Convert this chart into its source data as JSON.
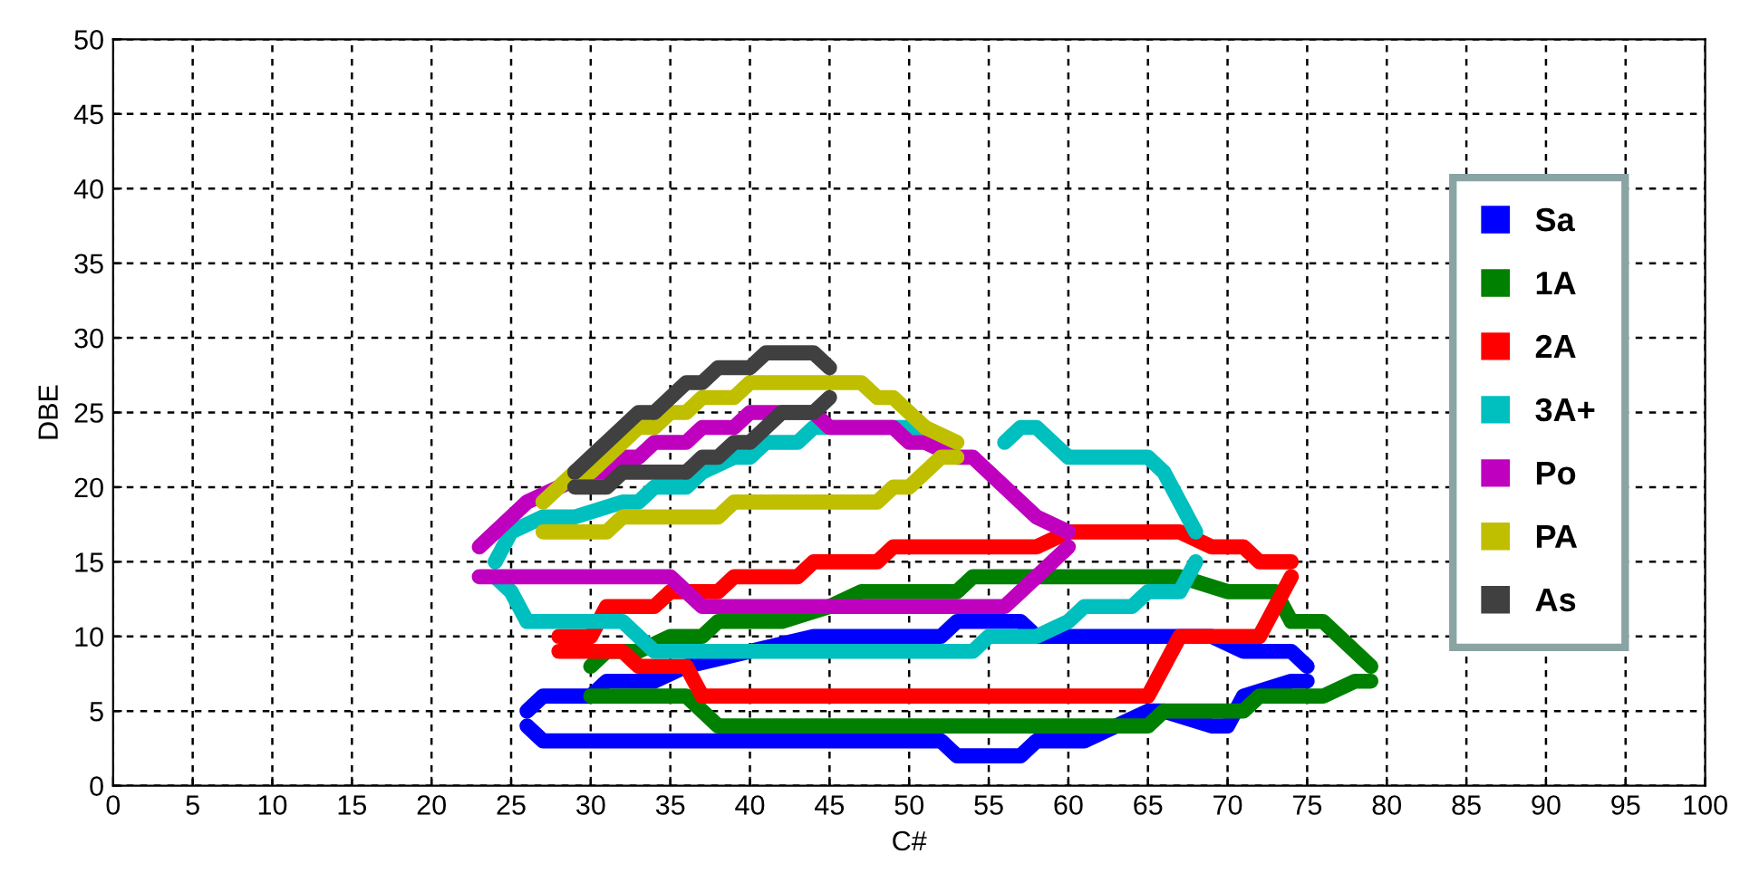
{
  "chart_data": {
    "type": "line",
    "xlabel": "C#",
    "ylabel": "DBE",
    "xlim": [
      0,
      100
    ],
    "xticks": [
      0,
      5,
      10,
      15,
      20,
      25,
      30,
      35,
      40,
      45,
      50,
      55,
      60,
      65,
      70,
      75,
      80,
      85,
      90,
      95,
      100
    ],
    "ylim": [
      0,
      50
    ],
    "yticks": [
      0,
      5,
      10,
      15,
      20,
      25,
      30,
      35,
      40,
      45,
      50
    ],
    "grid": true,
    "legend": "right",
    "marker": "none",
    "line_style": "solid",
    "series": [
      {
        "name": "Sa",
        "color": "#0000ff",
        "x": [
          26,
          27,
          52,
          53,
          57,
          58,
          61,
          65,
          66,
          69,
          70,
          71,
          74,
          75
        ],
        "values": [
          4,
          3,
          3,
          2,
          2,
          3,
          3,
          5,
          5,
          4,
          4,
          6,
          7,
          7
        ]
      },
      {
        "color": "#0000ff",
        "x": [
          26,
          27,
          30,
          31,
          34,
          36,
          44,
          52,
          53,
          57,
          58,
          69,
          71,
          74,
          75
        ],
        "values": [
          5,
          6,
          6,
          7,
          7,
          8,
          10,
          10,
          11,
          11,
          10,
          10,
          9,
          9,
          8
        ]
      },
      {
        "name": "1A",
        "color": "#008000",
        "x": [
          30,
          31,
          36,
          37,
          38,
          65,
          66,
          71,
          72,
          76,
          78,
          79
        ],
        "values": [
          6,
          6,
          6,
          5,
          4,
          4,
          5,
          5,
          6,
          6,
          7,
          7
        ]
      },
      {
        "color": "#008000",
        "x": [
          30,
          31,
          33,
          35,
          37,
          38,
          42,
          45,
          47,
          53,
          54,
          67,
          70,
          73,
          74,
          76,
          77,
          79
        ],
        "values": [
          8,
          9,
          9,
          10,
          10,
          11,
          11,
          12,
          13,
          13,
          14,
          14,
          13,
          13,
          11,
          11,
          10,
          8
        ]
      },
      {
        "name": "2A",
        "color": "#ff0000",
        "x": [
          28,
          32,
          33,
          36,
          37,
          65,
          66,
          67,
          72,
          73,
          74
        ],
        "values": [
          9,
          9,
          8,
          8,
          6,
          6,
          8,
          10,
          10,
          12,
          14
        ]
      },
      {
        "color": "#ff0000",
        "x": [
          28,
          29,
          30,
          31,
          34,
          35,
          38,
          39,
          43,
          44,
          48,
          49,
          58,
          60,
          67,
          69,
          71,
          72,
          74
        ],
        "values": [
          10,
          10,
          10,
          12,
          12,
          13,
          13,
          14,
          14,
          15,
          15,
          16,
          16,
          17,
          17,
          16,
          16,
          15,
          15
        ]
      },
      {
        "name": "3A+",
        "color": "#00bfbf",
        "x": [
          24,
          25,
          26,
          32,
          33,
          34,
          54,
          55,
          58,
          60,
          61,
          64,
          65,
          67,
          68
        ],
        "values": [
          14,
          13,
          11,
          11,
          10,
          9,
          9,
          10,
          10,
          11,
          12,
          12,
          13,
          13,
          15
        ]
      },
      {
        "color": "#00bfbf",
        "x": [
          24,
          25,
          27,
          29,
          32,
          33,
          34,
          36,
          37,
          39,
          40,
          41,
          43,
          44,
          51,
          52,
          56,
          57,
          58,
          59,
          60,
          65,
          66,
          67,
          68
        ],
        "values": [
          15,
          17,
          18,
          18,
          19,
          19,
          20,
          20,
          21,
          22,
          22,
          23,
          23,
          24,
          24,
          null,
          23,
          24,
          24,
          23,
          22,
          22,
          21,
          19,
          17
        ]
      },
      {
        "name": "Po",
        "color": "#bf00bf",
        "x": [
          23,
          35,
          36,
          37,
          56,
          57,
          58,
          59,
          60
        ],
        "values": [
          14,
          14,
          13,
          12,
          12,
          13,
          14,
          15,
          16
        ]
      },
      {
        "color": "#bf00bf",
        "x": [
          23,
          24,
          25,
          26,
          30,
          31,
          32,
          33,
          34,
          36,
          37,
          39,
          40,
          44,
          45,
          49,
          50,
          51,
          53,
          54,
          55,
          56,
          57,
          58,
          60
        ],
        "values": [
          16,
          17,
          18,
          19,
          21,
          21,
          22,
          22,
          23,
          23,
          24,
          24,
          25,
          25,
          24,
          24,
          23,
          23,
          22,
          22,
          21,
          20,
          19,
          18,
          17
        ]
      },
      {
        "name": "PA",
        "color": "#bfbf00",
        "x": [
          27,
          28,
          31,
          32,
          38,
          39,
          48,
          49,
          50,
          51,
          52,
          53
        ],
        "values": [
          17,
          17,
          17,
          18,
          18,
          19,
          19,
          20,
          20,
          21,
          22,
          22
        ]
      },
      {
        "color": "#bfbf00",
        "x": [
          27,
          28,
          29,
          30,
          31,
          32,
          33,
          34,
          35,
          36,
          37,
          39,
          40,
          47,
          48,
          49,
          50,
          51,
          53
        ],
        "values": [
          19,
          20,
          21,
          21,
          22,
          23,
          24,
          24,
          25,
          25,
          26,
          26,
          27,
          27,
          26,
          26,
          25,
          24,
          23
        ]
      },
      {
        "name": "As",
        "color": "#404040",
        "x": [
          29,
          31,
          32,
          36,
          37,
          38,
          39,
          40,
          41,
          42,
          44,
          45
        ],
        "values": [
          20,
          20,
          21,
          21,
          22,
          22,
          23,
          23,
          24,
          25,
          25,
          26
        ]
      },
      {
        "color": "#404040",
        "x": [
          29,
          30,
          31,
          32,
          33,
          34,
          35,
          36,
          37,
          38,
          40,
          41,
          44,
          45
        ],
        "values": [
          21,
          22,
          23,
          24,
          25,
          25,
          26,
          27,
          27,
          28,
          28,
          29,
          29,
          28
        ]
      }
    ]
  }
}
